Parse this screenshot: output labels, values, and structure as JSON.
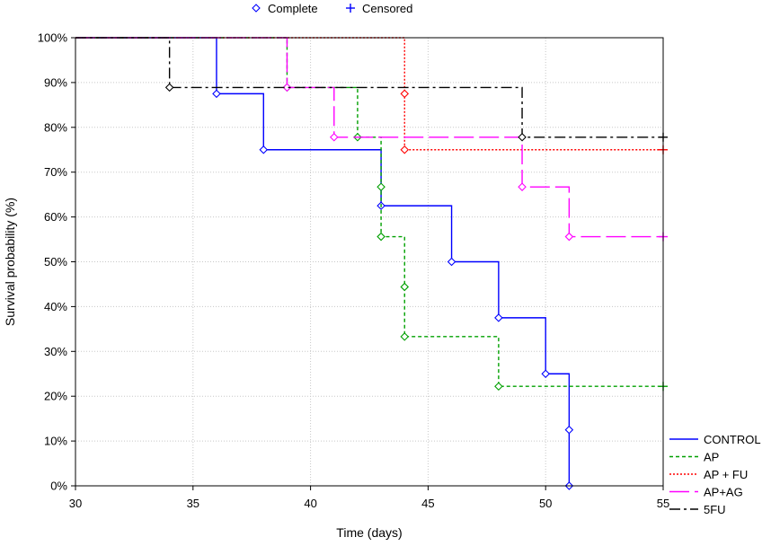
{
  "chart_data": {
    "type": "line",
    "step": true,
    "xlabel": "Time (days)",
    "ylabel": "Survival probability (%)",
    "xlim": [
      30,
      55
    ],
    "ylim": [
      0,
      100
    ],
    "xticks": [
      "30",
      "35",
      "40",
      "45",
      "50",
      "55"
    ],
    "yticks": [
      "0%",
      "10%",
      "20%",
      "30%",
      "40%",
      "50%",
      "60%",
      "70%",
      "80%",
      "90%",
      "100%"
    ],
    "grid": true,
    "marker_legend": {
      "placement": "top",
      "items": [
        {
          "label": "Complete",
          "symbol": "diamond-icon"
        },
        {
          "label": "Censored",
          "symbol": "plus-icon"
        }
      ]
    },
    "legend_placement": "bottom-right",
    "series": [
      {
        "name": "CONTROL",
        "color": "#0000ff",
        "dash": "solid",
        "steps": [
          [
            30,
            100
          ],
          [
            36,
            87.5
          ],
          [
            38,
            75
          ],
          [
            43,
            62.5
          ],
          [
            46,
            50
          ],
          [
            48,
            37.5
          ],
          [
            50,
            25
          ],
          [
            51,
            12.5
          ],
          [
            51,
            0
          ]
        ],
        "end": 51,
        "events": [
          [
            36,
            87.5
          ],
          [
            38,
            75
          ],
          [
            43,
            62.5
          ],
          [
            46,
            50
          ],
          [
            48,
            37.5
          ],
          [
            50,
            25
          ],
          [
            51,
            12.5
          ],
          [
            51,
            0
          ]
        ],
        "censored": []
      },
      {
        "name": "AP",
        "color": "#00a000",
        "dash": "dashed",
        "steps": [
          [
            30,
            100
          ],
          [
            39,
            88.9
          ],
          [
            42,
            77.8
          ],
          [
            43,
            66.7
          ],
          [
            43,
            55.6
          ],
          [
            44,
            44.4
          ],
          [
            44,
            33.3
          ],
          [
            48,
            22.2
          ]
        ],
        "end": 55,
        "events": [
          [
            39,
            88.9
          ],
          [
            42,
            77.8
          ],
          [
            43,
            66.7
          ],
          [
            43,
            55.6
          ],
          [
            44,
            44.4
          ],
          [
            44,
            33.3
          ],
          [
            48,
            22.2
          ]
        ],
        "censored": [
          [
            55,
            22.2
          ]
        ]
      },
      {
        "name": "AP + FU",
        "color": "#ff0000",
        "dash": "dotted",
        "steps": [
          [
            30,
            100
          ],
          [
            44,
            87.5
          ],
          [
            44,
            75
          ]
        ],
        "end": 55,
        "events": [
          [
            44,
            87.5
          ],
          [
            44,
            75
          ]
        ],
        "censored": [
          [
            55,
            75
          ]
        ]
      },
      {
        "name": "AP+AG",
        "color": "#ff00ff",
        "dash": "longdash",
        "steps": [
          [
            30,
            100
          ],
          [
            39,
            88.9
          ],
          [
            41,
            77.8
          ],
          [
            49,
            66.7
          ],
          [
            51,
            55.6
          ]
        ],
        "end": 55,
        "events": [
          [
            39,
            88.9
          ],
          [
            41,
            77.8
          ],
          [
            49,
            66.7
          ],
          [
            51,
            55.6
          ]
        ],
        "censored": [
          [
            55,
            55.6
          ]
        ]
      },
      {
        "name": "5FU",
        "color": "#000000",
        "dash": "dashdot",
        "steps": [
          [
            30,
            100
          ],
          [
            34,
            88.9
          ],
          [
            49,
            77.8
          ]
        ],
        "end": 55,
        "events": [
          [
            34,
            88.9
          ],
          [
            49,
            77.8
          ]
        ],
        "censored": [
          [
            55,
            77.8
          ]
        ]
      }
    ]
  }
}
